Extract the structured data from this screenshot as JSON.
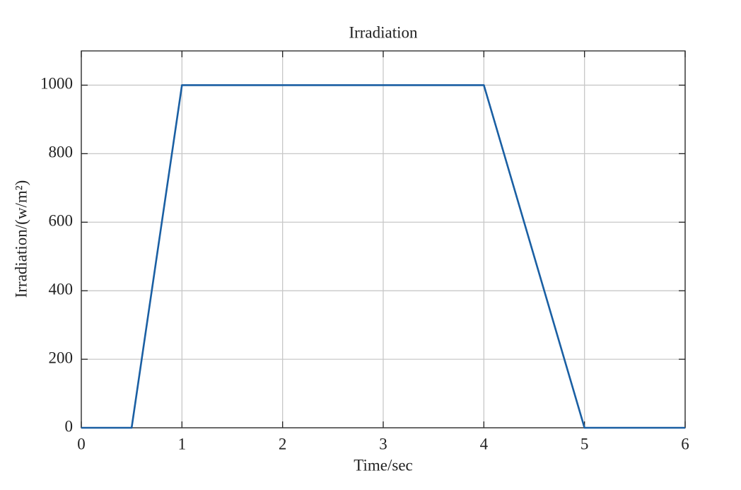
{
  "chart_data": {
    "type": "line",
    "title": "Irradiation",
    "x_label": "Time/sec",
    "y_label": "Irradiation/(w/m²)",
    "x": [
      0,
      0.5,
      1,
      4,
      5,
      6
    ],
    "series": [
      {
        "color": "#1a5fa3",
        "values": [
          0,
          0,
          1000,
          1000,
          0,
          0
        ]
      }
    ],
    "xlim": [
      0,
      6
    ],
    "xticks": [
      0,
      1,
      2,
      3,
      4,
      5,
      6
    ],
    "ylim": [
      0,
      1100
    ],
    "yticks": [
      0,
      200,
      400,
      600,
      800,
      1000
    ],
    "grid": true
  }
}
